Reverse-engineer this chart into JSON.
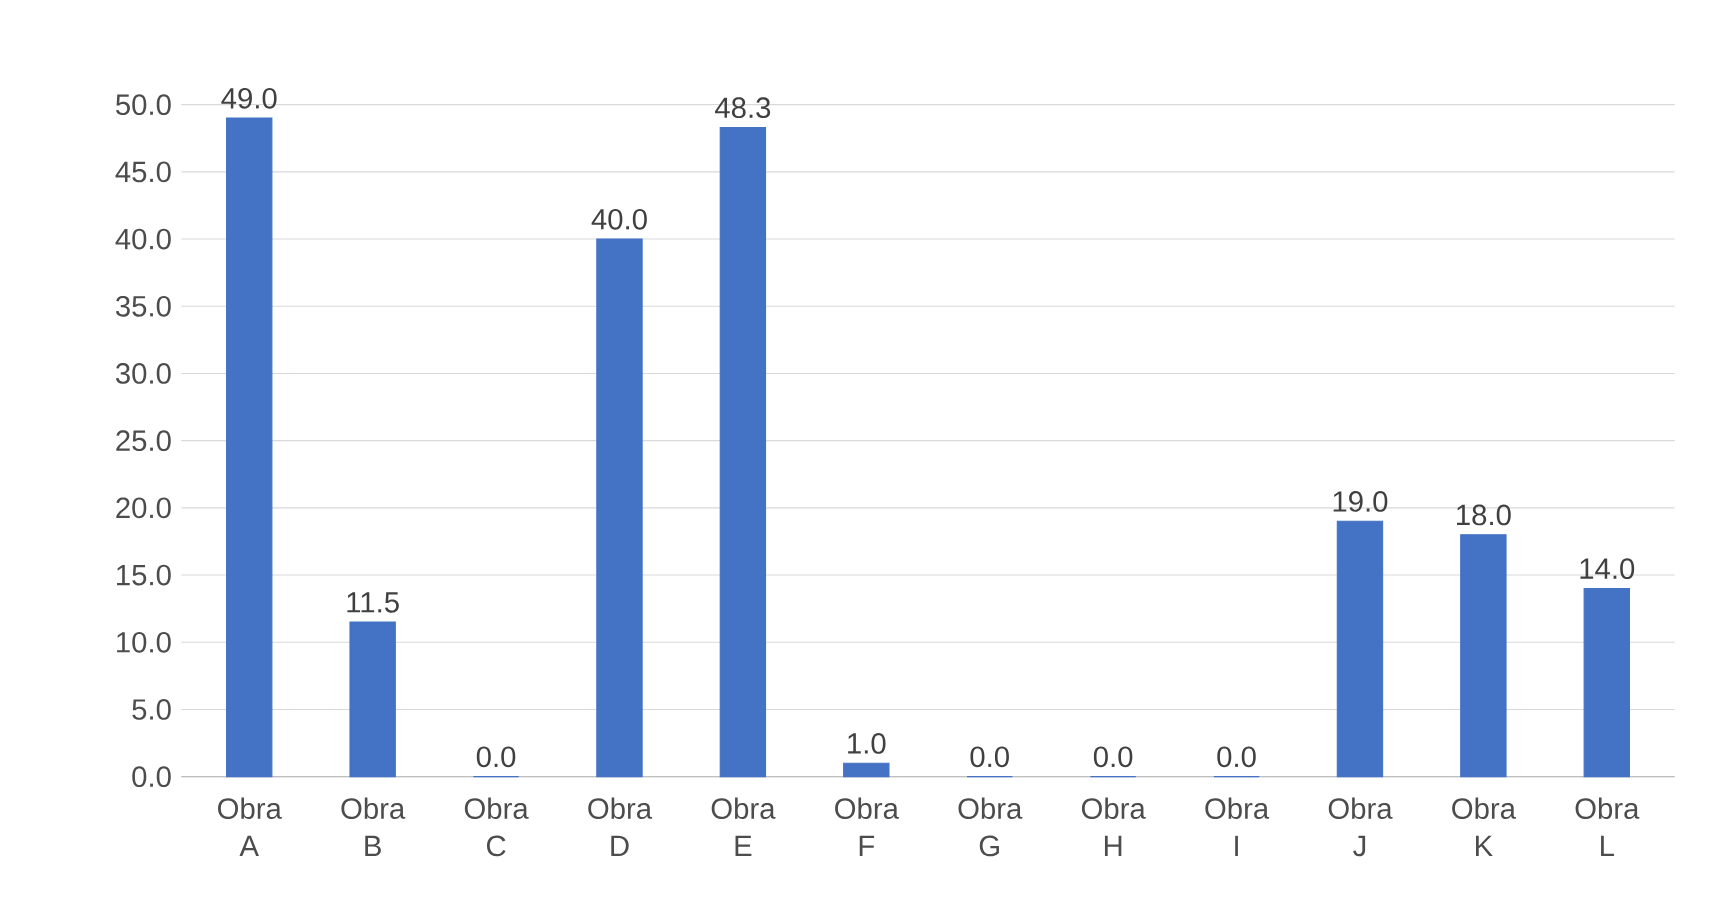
{
  "chart_data": {
    "type": "bar",
    "color": "#4472c4",
    "categories": [
      "Obra A",
      "Obra B",
      "Obra C",
      "Obra D",
      "Obra E",
      "Obra F",
      "Obra G",
      "Obra H",
      "Obra I",
      "Obra J",
      "Obra K",
      "Obra L"
    ],
    "values": [
      49.0,
      11.5,
      0.0,
      40.0,
      48.3,
      1.0,
      0.0,
      0.0,
      0.0,
      19.0,
      18.0,
      14.0
    ],
    "value_labels": [
      "49.0",
      "11.5",
      "0.0",
      "40.0",
      "48.3",
      "1.0",
      "0.0",
      "0.0",
      "0.0",
      "19.0",
      "18.0",
      "14.0"
    ],
    "ylim": [
      0,
      50
    ],
    "yticks": [
      {
        "value": 0,
        "label": "0.0"
      },
      {
        "value": 5,
        "label": "5.0"
      },
      {
        "value": 10,
        "label": "10.0"
      },
      {
        "value": 15,
        "label": "15.0"
      },
      {
        "value": 20,
        "label": "20.0"
      },
      {
        "value": 25,
        "label": "25.0"
      },
      {
        "value": 30,
        "label": "30.0"
      },
      {
        "value": 35,
        "label": "35.0"
      },
      {
        "value": 40,
        "label": "40.0"
      },
      {
        "value": 45,
        "label": "45.0"
      },
      {
        "value": 50,
        "label": "50.0"
      }
    ],
    "grid": "y"
  }
}
